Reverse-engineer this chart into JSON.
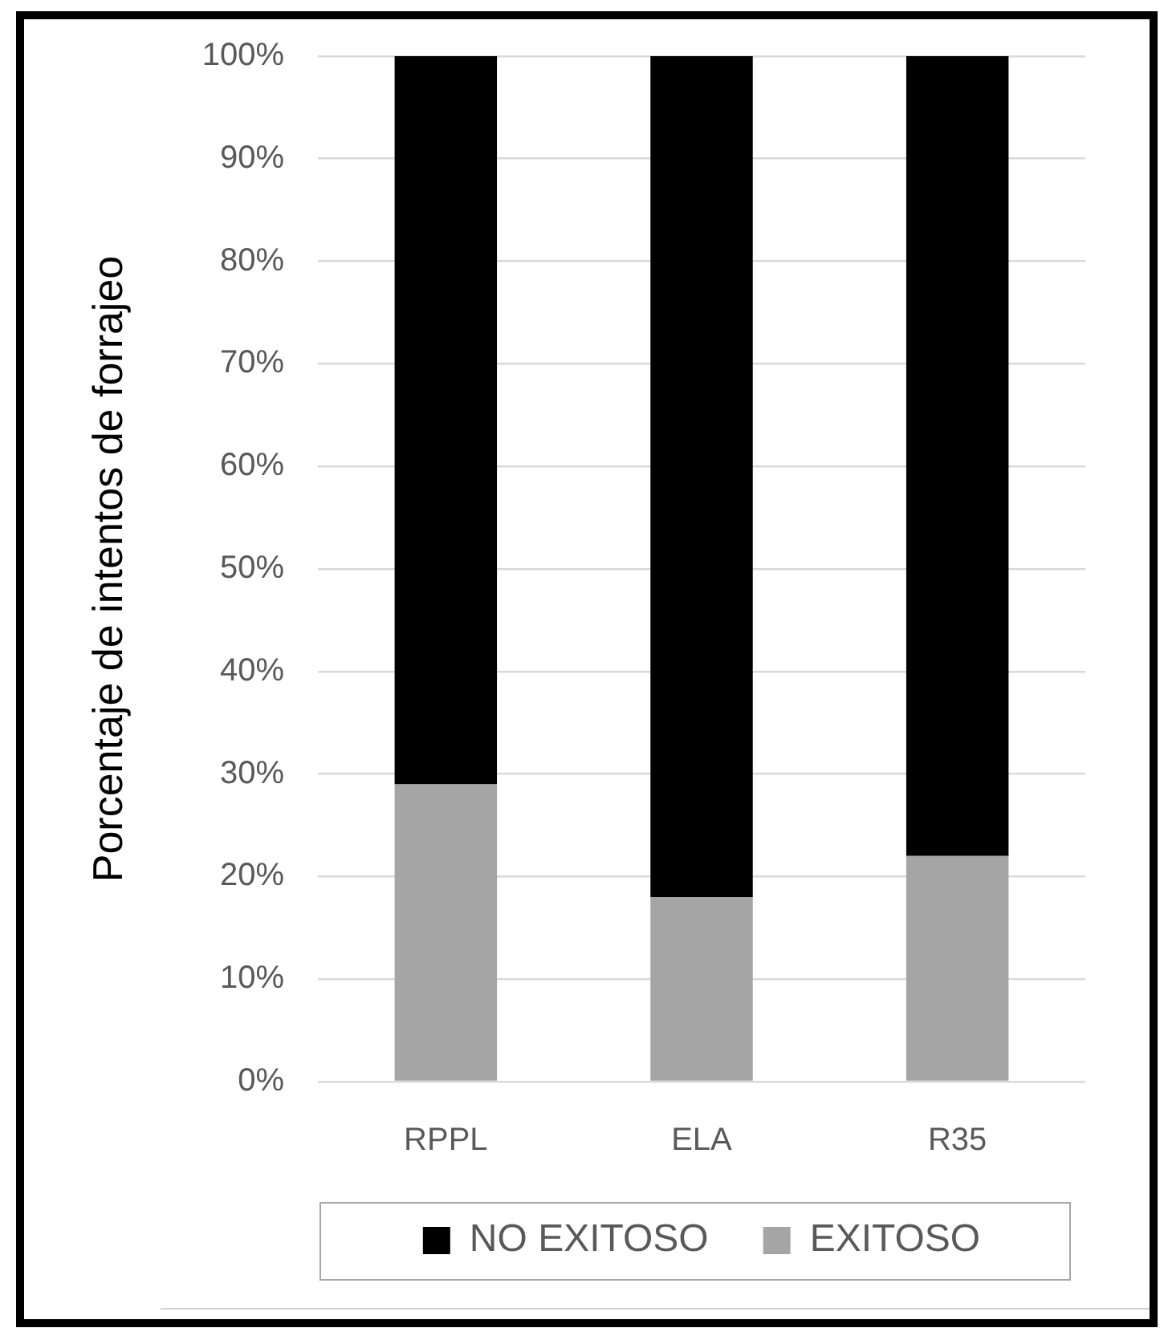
{
  "chart_data": {
    "type": "bar",
    "ylabel": "Porcentaje de intentos de forrajeo",
    "categories": [
      "RPPL",
      "ELA",
      "R35"
    ],
    "stacked": true,
    "series": [
      {
        "name": "EXITOSO",
        "color": "#a5a5a5",
        "values": [
          29,
          18,
          22
        ]
      },
      {
        "name": "NO EXITOSO",
        "color": "#000000",
        "values": [
          71,
          82,
          78
        ]
      }
    ],
    "ylim": [
      0,
      100
    ],
    "yticks": [
      {
        "value": 0,
        "label": "0%"
      },
      {
        "value": 10,
        "label": "10%"
      },
      {
        "value": 20,
        "label": "20%"
      },
      {
        "value": 30,
        "label": "30%"
      },
      {
        "value": 40,
        "label": "40%"
      },
      {
        "value": 50,
        "label": "50%"
      },
      {
        "value": 60,
        "label": "60%"
      },
      {
        "value": 70,
        "label": "70%"
      },
      {
        "value": 80,
        "label": "80%"
      },
      {
        "value": 90,
        "label": "90%"
      },
      {
        "value": 100,
        "label": "100%"
      }
    ],
    "grid": "y",
    "legend": "bottom"
  }
}
